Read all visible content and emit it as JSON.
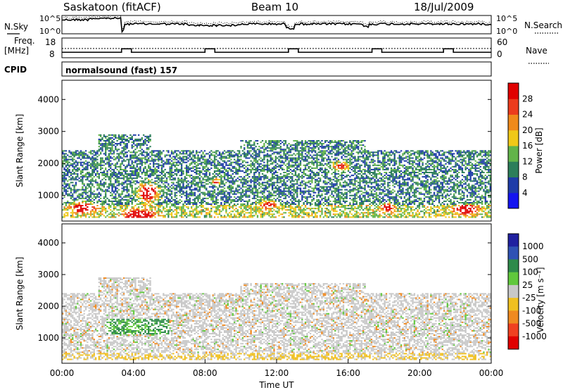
{
  "header": {
    "station": "Saskatoon (fitACF)",
    "beam": "Beam 10",
    "date": "18/Jul/2009"
  },
  "chart_data": [
    {
      "panel": "noise",
      "type": "line",
      "left_label": "N.Sky",
      "right_label": "N.Search",
      "left_ticks": [
        "10^5",
        "10^0"
      ],
      "right_ticks": [
        "10^5",
        "10^0"
      ]
    },
    {
      "panel": "frequency_nave",
      "type": "line",
      "left_label_line1": "Freq.",
      "left_label_line2": "[MHz]",
      "right_label": "Nave",
      "left_ticks": [
        18,
        8
      ],
      "right_ticks": [
        60,
        0
      ],
      "freq_step_starts": [
        "03:20",
        "08:00",
        "12:40",
        "17:20",
        "21:20"
      ],
      "nave_level": 28
    },
    {
      "panel": "cpid",
      "type": "table",
      "label": "CPID",
      "value": "normalsound (fast) 157"
    },
    {
      "panel": "power",
      "type": "heatmap",
      "ylabel": "Slant Range [km]",
      "ylim": [
        200,
        4600
      ],
      "yticks": [
        1000,
        2000,
        3000,
        4000
      ],
      "xlim_hours": [
        0,
        24
      ],
      "colorbar_label": "Power [dB]",
      "colorbar_ticks": [
        4,
        8,
        12,
        16,
        20,
        24,
        28
      ],
      "colorbar_range": [
        0,
        32
      ],
      "colors": [
        "#1414f0",
        "#1e3ca8",
        "#2c7e5a",
        "#62b44a",
        "#f0c818",
        "#f08a1a",
        "#ec3c1c",
        "#e00000"
      ]
    },
    {
      "panel": "velocity",
      "type": "heatmap",
      "ylabel": "Slant Range [km]",
      "ylim": [
        200,
        4600
      ],
      "yticks": [
        1000,
        2000,
        3000,
        4000
      ],
      "xlim_hours": [
        0,
        24
      ],
      "xticks": [
        "00:00",
        "04:00",
        "08:00",
        "12:00",
        "16:00",
        "20:00",
        "00:00"
      ],
      "xlabel": "Time UT",
      "colorbar_label": "Velocity [m s⁻¹]",
      "colorbar_ticks": [
        1000,
        500,
        100,
        25,
        -25,
        -100,
        -500,
        -1000
      ],
      "colors": [
        "#2020a0",
        "#2f52b4",
        "#2e8a4a",
        "#60c83c",
        "#c8c8c8",
        "#f0c020",
        "#f08a20",
        "#f04020",
        "#e00000"
      ]
    }
  ]
}
